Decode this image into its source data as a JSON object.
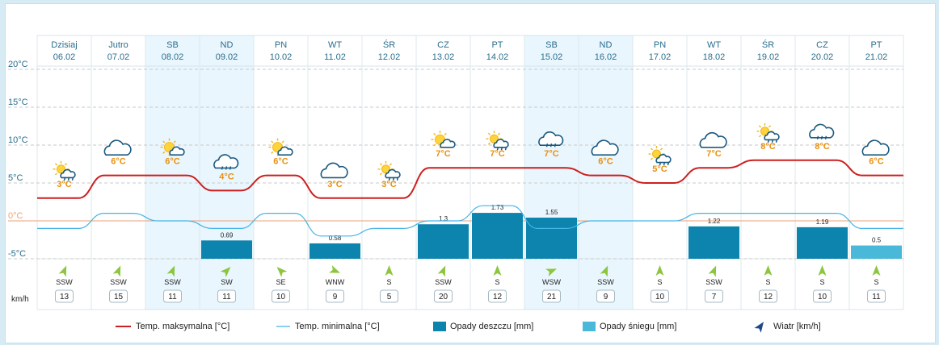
{
  "unit_speed": "km/h",
  "colors": {
    "max_line": "#cc1f1f",
    "min_line": "#45b4e6",
    "rain": "#0c84ae",
    "snow": "#4ab8d8",
    "weekend": "#e9f6fd",
    "temp_label": "#e8900e",
    "zero_line": "#e9a27a"
  },
  "days": [
    {
      "name": "Dzisiaj",
      "date": "06.02",
      "weekend": false,
      "icon": "sun-cloud-rain-icon",
      "temp_label": "3°C",
      "wind_dir": "SSW",
      "wind_speed": "13"
    },
    {
      "name": "Jutro",
      "date": "07.02",
      "weekend": false,
      "icon": "cloud-icon",
      "temp_label": "6°C",
      "wind_dir": "SSW",
      "wind_speed": "15"
    },
    {
      "name": "SB",
      "date": "08.02",
      "weekend": true,
      "icon": "sun-cloud-icon",
      "temp_label": "6°C",
      "wind_dir": "SSW",
      "wind_speed": "11"
    },
    {
      "name": "ND",
      "date": "09.02",
      "weekend": true,
      "icon": "rain-cloud-icon",
      "temp_label": "4°C",
      "wind_dir": "SW",
      "wind_speed": "11"
    },
    {
      "name": "PN",
      "date": "10.02",
      "weekend": false,
      "icon": "sun-cloud-icon",
      "temp_label": "6°C",
      "wind_dir": "SE",
      "wind_speed": "10"
    },
    {
      "name": "WT",
      "date": "11.02",
      "weekend": false,
      "icon": "cloud-icon",
      "temp_label": "3°C",
      "wind_dir": "WNW",
      "wind_speed": "9"
    },
    {
      "name": "ŚR",
      "date": "12.02",
      "weekend": false,
      "icon": "sun-cloud-rain-icon",
      "temp_label": "3°C",
      "wind_dir": "S",
      "wind_speed": "5"
    },
    {
      "name": "CZ",
      "date": "13.02",
      "weekend": false,
      "icon": "sun-cloud-icon",
      "temp_label": "7°C",
      "wind_dir": "SSW",
      "wind_speed": "20"
    },
    {
      "name": "PT",
      "date": "14.02",
      "weekend": false,
      "icon": "sun-cloud-rain-icon",
      "temp_label": "7°C",
      "wind_dir": "S",
      "wind_speed": "12"
    },
    {
      "name": "SB",
      "date": "15.02",
      "weekend": true,
      "icon": "rain-cloud-icon",
      "temp_label": "7°C",
      "wind_dir": "WSW",
      "wind_speed": "21"
    },
    {
      "name": "ND",
      "date": "16.02",
      "weekend": true,
      "icon": "cloud-icon",
      "temp_label": "6°C",
      "wind_dir": "SSW",
      "wind_speed": "9"
    },
    {
      "name": "PN",
      "date": "17.02",
      "weekend": false,
      "icon": "sun-cloud-rain-icon",
      "temp_label": "5°C",
      "wind_dir": "S",
      "wind_speed": "10"
    },
    {
      "name": "WT",
      "date": "18.02",
      "weekend": false,
      "icon": "cloud-icon",
      "temp_label": "7°C",
      "wind_dir": "SSW",
      "wind_speed": "7"
    },
    {
      "name": "ŚR",
      "date": "19.02",
      "weekend": false,
      "icon": "sun-cloud-rain-icon",
      "temp_label": "8°C",
      "wind_dir": "S",
      "wind_speed": "12"
    },
    {
      "name": "CZ",
      "date": "20.02",
      "weekend": false,
      "icon": "rain-cloud-icon",
      "temp_label": "8°C",
      "wind_dir": "S",
      "wind_speed": "10"
    },
    {
      "name": "PT",
      "date": "21.02",
      "weekend": false,
      "icon": "cloud-icon",
      "temp_label": "6°C",
      "wind_dir": "S",
      "wind_speed": "11"
    }
  ],
  "legend": {
    "max": "Temp. maksymalna [°C]",
    "min": "Temp. minimalna [°C]",
    "rain": "Opady deszczu [mm]",
    "snow": "Opady śniegu [mm]",
    "wind": "Wiatr [km/h]"
  },
  "chart_data": {
    "type": "line",
    "ylim": [
      -5,
      20
    ],
    "y_ticks": [
      20,
      15,
      10,
      5,
      0,
      -5
    ],
    "y_tick_labels": [
      "20°C",
      "15°C",
      "10°C",
      "5°C",
      "0°C",
      "-5°C"
    ],
    "categories": [
      "06.02",
      "07.02",
      "08.02",
      "09.02",
      "10.02",
      "11.02",
      "12.02",
      "13.02",
      "14.02",
      "15.02",
      "16.02",
      "17.02",
      "18.02",
      "19.02",
      "20.02",
      "21.02"
    ],
    "series": [
      {
        "name": "Temp. maksymalna [°C]",
        "type": "line",
        "values": [
          3,
          6,
          6,
          4,
          6,
          3,
          3,
          7,
          7,
          7,
          6,
          5,
          7,
          8,
          8,
          6
        ]
      },
      {
        "name": "Temp. minimalna [°C]",
        "type": "line",
        "values": [
          -1,
          1,
          0,
          -1,
          1,
          -2,
          -1,
          0,
          2,
          -1,
          0,
          0,
          1,
          1,
          1,
          -1
        ]
      },
      {
        "name": "Opady deszczu [mm]",
        "type": "bar",
        "values": [
          null,
          null,
          null,
          0.69,
          null,
          0.58,
          null,
          1.3,
          1.73,
          1.55,
          null,
          null,
          1.22,
          null,
          1.19,
          null
        ],
        "labels": [
          "",
          "",
          "",
          "0.69",
          "",
          "0.58",
          "",
          "1.3",
          "1.73",
          "1.55",
          "",
          "",
          "1.22",
          "",
          "1.19",
          ""
        ]
      },
      {
        "name": "Opady śniegu [mm]",
        "type": "bar",
        "values": [
          null,
          null,
          null,
          null,
          null,
          null,
          null,
          null,
          null,
          null,
          null,
          null,
          null,
          null,
          null,
          0.5
        ],
        "labels": [
          "",
          "",
          "",
          "",
          "",
          "",
          "",
          "",
          "",
          "",
          "",
          "",
          "",
          "",
          "",
          "0.5"
        ]
      }
    ]
  }
}
